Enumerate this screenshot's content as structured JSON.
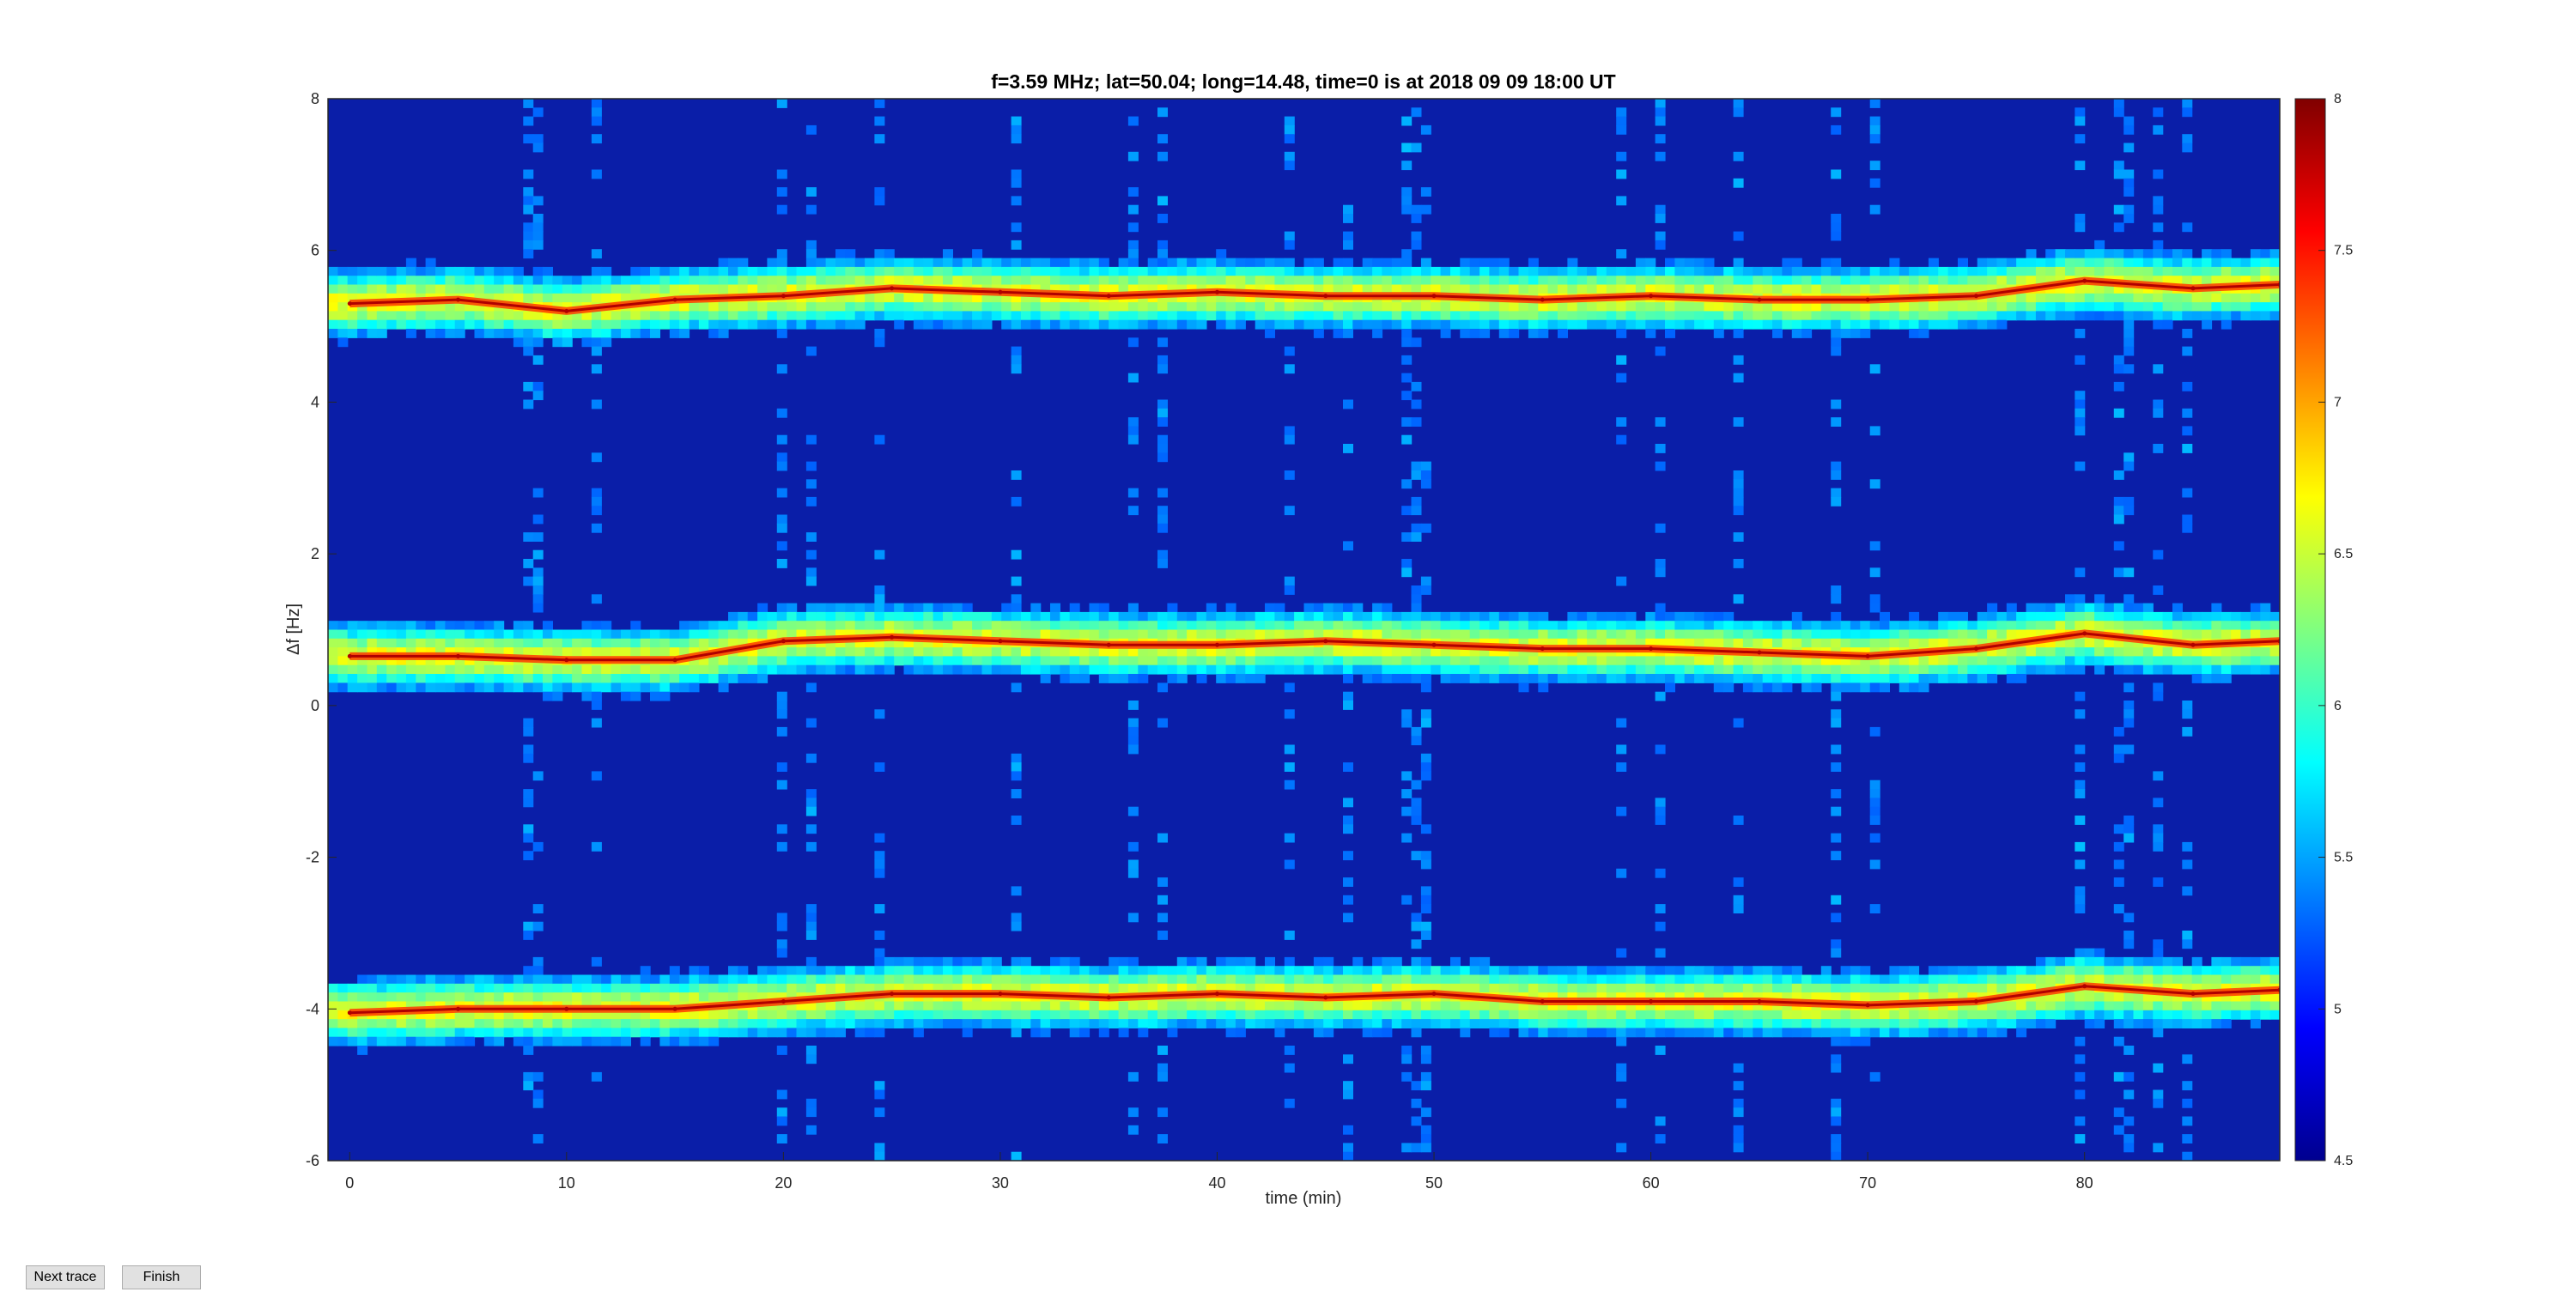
{
  "chart_data": {
    "type": "heatmap",
    "title": "f=3.59 MHz;  lat=50.04; long=14.48, time=0 is at 2018 09 09 18:00 UT",
    "xlabel": "time (min)",
    "ylabel": "Δf [Hz]",
    "xlim": [
      -1,
      89
    ],
    "ylim": [
      -6,
      8
    ],
    "xticks": [
      0,
      10,
      20,
      30,
      40,
      50,
      60,
      70,
      80
    ],
    "yticks": [
      -6,
      -4,
      -2,
      0,
      2,
      4,
      6,
      8
    ],
    "colorbar": {
      "range": [
        4.5,
        8
      ],
      "ticks": [
        "4.5",
        "5",
        "5.5",
        "6",
        "6.5",
        "7",
        "7.5",
        "8"
      ],
      "colormap": "jet"
    },
    "series": [
      {
        "x": [
          0,
          5,
          10,
          15,
          20,
          25,
          30,
          35,
          40,
          45,
          50,
          55,
          60,
          65,
          70,
          75,
          80,
          85,
          89
        ],
        "y": [
          5.3,
          5.35,
          5.2,
          5.35,
          5.4,
          5.5,
          5.45,
          5.4,
          5.45,
          5.4,
          5.4,
          5.35,
          5.4,
          5.35,
          5.35,
          5.4,
          5.6,
          5.5,
          5.55
        ]
      },
      {
        "x": [
          0,
          5,
          10,
          15,
          20,
          25,
          30,
          35,
          40,
          45,
          50,
          55,
          60,
          65,
          70,
          75,
          80,
          85,
          89
        ],
        "y": [
          0.65,
          0.65,
          0.6,
          0.6,
          0.85,
          0.9,
          0.85,
          0.8,
          0.8,
          0.85,
          0.8,
          0.75,
          0.75,
          0.7,
          0.65,
          0.75,
          0.95,
          0.8,
          0.85
        ]
      },
      {
        "x": [
          0,
          5,
          10,
          15,
          20,
          25,
          30,
          35,
          40,
          45,
          50,
          55,
          60,
          65,
          70,
          75,
          80,
          85,
          89
        ],
        "y": [
          -4.05,
          -4.0,
          -4.0,
          -4.0,
          -3.9,
          -3.8,
          -3.8,
          -3.85,
          -3.8,
          -3.85,
          -3.8,
          -3.9,
          -3.9,
          -3.9,
          -3.95,
          -3.9,
          -3.7,
          -3.8,
          -3.75
        ]
      }
    ]
  },
  "buttons": {
    "next_trace": "Next trace",
    "finish": "Finish"
  }
}
